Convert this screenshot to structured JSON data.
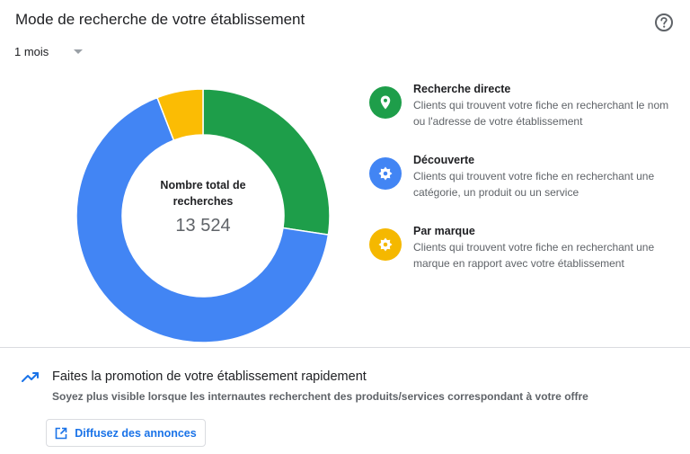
{
  "header": {
    "title": "Mode de recherche de votre établissement",
    "help_icon": "help-circle-icon"
  },
  "period": {
    "selected": "1 mois"
  },
  "chart_data": {
    "type": "pie",
    "categories": [
      "Recherche directe",
      "Découverte",
      "Par marque"
    ],
    "values": [
      3705,
      9022,
      797
    ],
    "colors": [
      "#1e9e4a",
      "#4285f4",
      "#fbbc04"
    ],
    "total_label": "Nombre total de recherches",
    "total_value": "13 524"
  },
  "legend": [
    {
      "title": "Recherche directe",
      "description": "Clients qui trouvent votre fiche en recherchant le nom ou l'adresse de votre établissement",
      "color": "#1e9e4a",
      "icon": "map-pin-icon"
    },
    {
      "title": "Découverte",
      "description": "Clients qui trouvent votre fiche en recherchant une catégorie, un produit ou un service",
      "color": "#4285f4",
      "icon": "discovery-badge-icon"
    },
    {
      "title": "Par marque",
      "description": "Clients qui trouvent votre fiche en recherchant une marque en rapport avec votre établissement",
      "color": "#f5b800",
      "icon": "brand-badge-icon"
    }
  ],
  "promo": {
    "title": "Faites la promotion de votre établissement rapidement",
    "description": "Soyez plus visible lorsque les internautes recherchent des produits/services correspondant à votre offre",
    "button_label": "Diffusez des annonces",
    "accent": "#1a73e8"
  }
}
